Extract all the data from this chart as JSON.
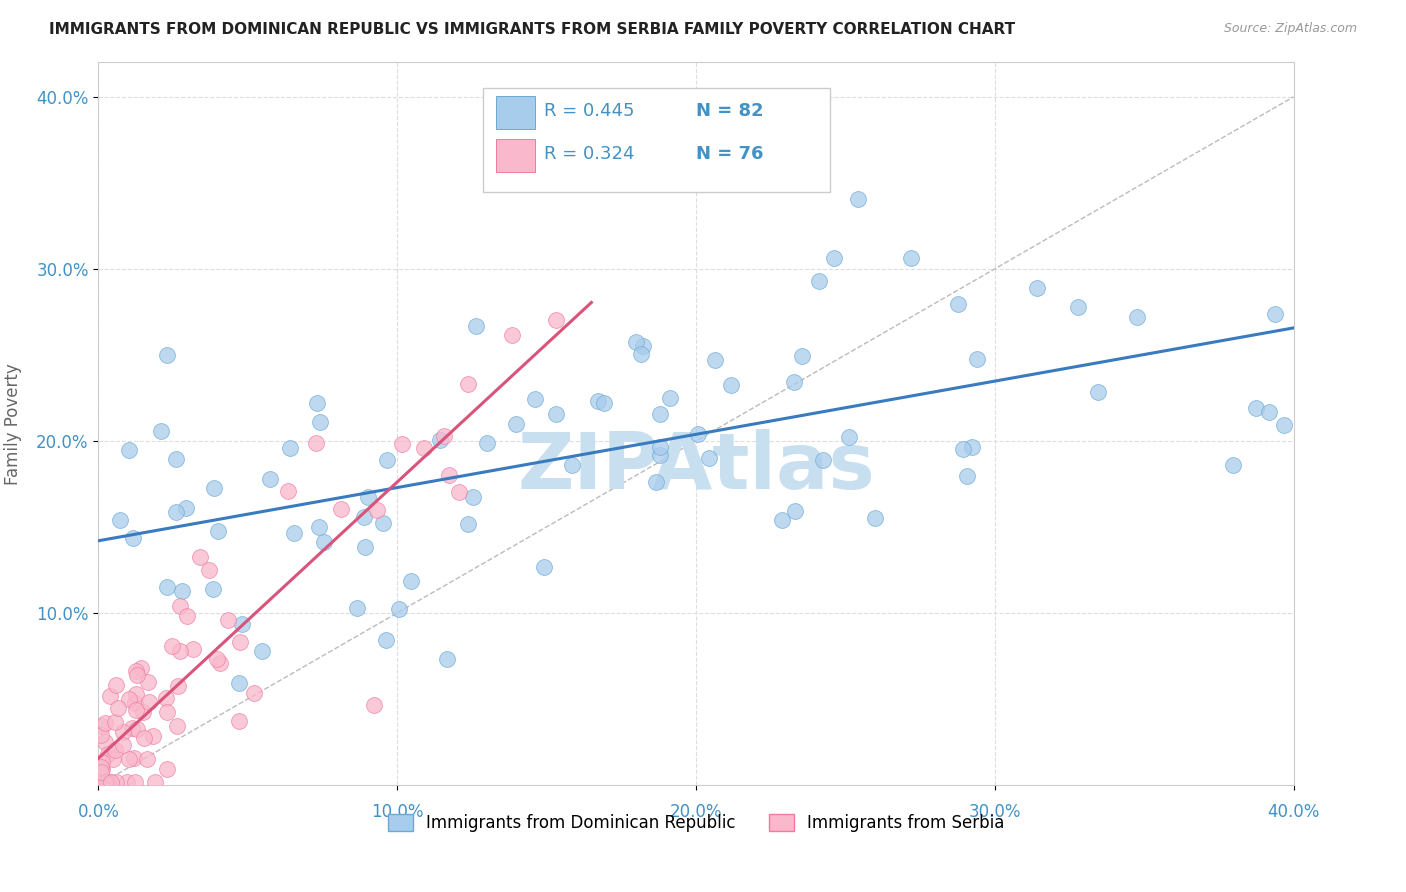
{
  "title": "IMMIGRANTS FROM DOMINICAN REPUBLIC VS IMMIGRANTS FROM SERBIA FAMILY POVERTY CORRELATION CHART",
  "source": "Source: ZipAtlas.com",
  "ylabel": "Family Poverty",
  "xlim": [
    0.0,
    0.4
  ],
  "ylim": [
    0.0,
    0.42
  ],
  "legend_r1": "R = 0.445",
  "legend_n1": "N = 82",
  "legend_r2": "R = 0.324",
  "legend_n2": "N = 76",
  "color_blue": "#a8ccec",
  "color_pink": "#f9b8cb",
  "color_blue_edge": "#6aaad4",
  "color_pink_edge": "#f07aa0",
  "color_line_blue": "#3a7bbf",
  "color_line_pink": "#d9547a",
  "color_diag": "#bbbbbb",
  "color_title": "#222222",
  "color_axis_blue": "#4292c6",
  "color_rn_text": "#4292c6",
  "watermark_color": "#c8dff0",
  "label_blue": "Immigrants from Dominican Republic",
  "label_pink": "Immigrants from Serbia"
}
